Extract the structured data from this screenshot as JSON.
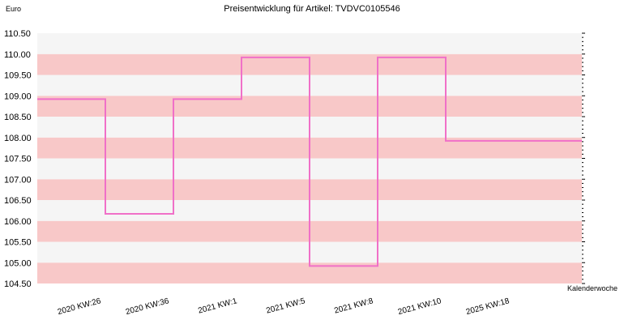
{
  "chart_data": {
    "type": "line",
    "step": true,
    "title": "Preisentwicklung für Artikel: TVDVC0105546",
    "ylabel": "Euro",
    "xlabel": "Kalenderwoche",
    "ylim": [
      104.5,
      110.5
    ],
    "yticks": [
      "104.50",
      "105.00",
      "105.50",
      "106.00",
      "106.50",
      "107.00",
      "107.50",
      "108.00",
      "108.50",
      "109.00",
      "109.50",
      "110.00",
      "110.50"
    ],
    "categories": [
      "2020 KW:26",
      "2020 KW:36",
      "2021 KW:1",
      "2021 KW:5",
      "2021 KW:8",
      "2021 KW:10",
      "2025 KW:18"
    ],
    "series": [
      {
        "values": [
          108.92,
          106.17,
          108.92,
          109.92,
          104.92,
          109.92,
          107.92
        ],
        "color": "#f070c8"
      }
    ],
    "band_colors": [
      "#f8c8c8",
      "#f5f5f5"
    ],
    "grid": false
  }
}
